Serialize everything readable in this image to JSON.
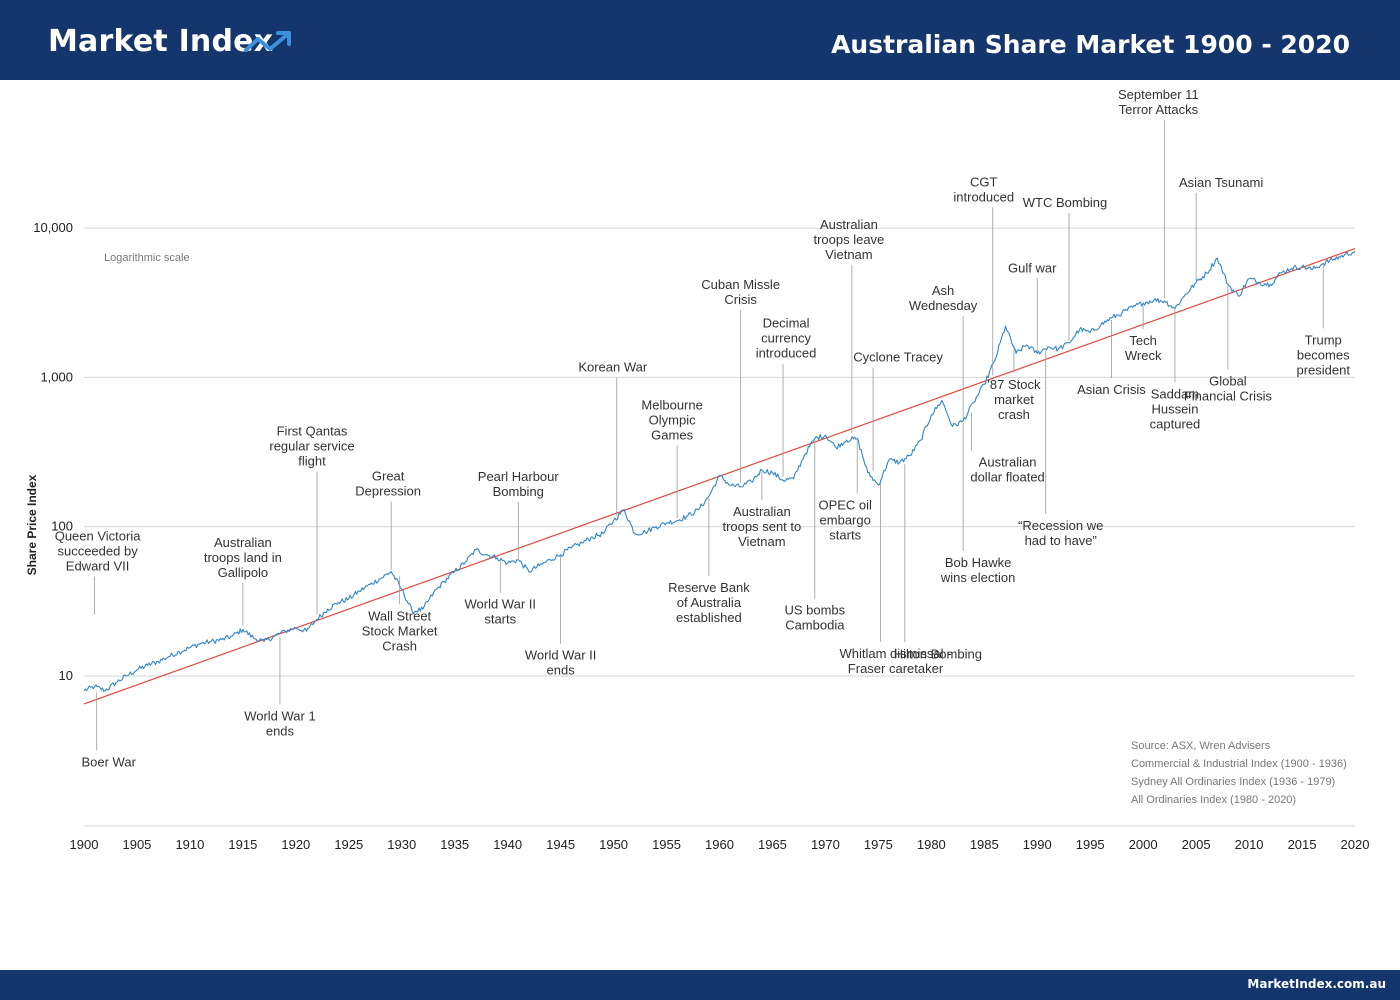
{
  "header": {
    "logo_text": "Market Index",
    "logo_icon": "trend-up-icon",
    "title": "Australian Share Market 1900 - 2020"
  },
  "footer": {
    "url": "MarketIndex.com.au"
  },
  "colors": {
    "brand": "#15356d",
    "accent": "#3b8fdd",
    "series": "#2f86c9",
    "trend": "#e0473a"
  },
  "chart_data": {
    "type": "line",
    "title": "",
    "xlabel": "",
    "ylabel": "Share Price Index",
    "yscale": "log",
    "scale_note": "Logarithmic scale",
    "xlim": [
      1900,
      2020
    ],
    "ylim": [
      2.5,
      15000
    ],
    "x_ticks": [
      1900,
      1905,
      1910,
      1915,
      1920,
      1925,
      1930,
      1935,
      1940,
      1945,
      1950,
      1955,
      1960,
      1965,
      1970,
      1975,
      1980,
      1985,
      1990,
      1995,
      2000,
      2005,
      2010,
      2015,
      2020
    ],
    "x_tick_labels": [
      "1900",
      "1905",
      "1910",
      "1915",
      "1920",
      "1925",
      "1930",
      "1935",
      "1940",
      "1945",
      "1950",
      "1955",
      "1960",
      "1965",
      "1970",
      "1975",
      "1980",
      "1985",
      "1990",
      "1995",
      "2000",
      "2005",
      "2010",
      "2015",
      "2020"
    ],
    "y_ticks": [
      10,
      100,
      1000,
      10000
    ],
    "y_tick_labels": [
      "10",
      "100",
      "1,000",
      "10,000"
    ],
    "grid": true,
    "series": [
      {
        "values": [
          [
            1900,
            8.0
          ],
          [
            1901,
            8.5
          ],
          [
            1902,
            8.0
          ],
          [
            1903,
            9.0
          ],
          [
            1904,
            10.0
          ],
          [
            1905,
            11.0
          ],
          [
            1906,
            11.8
          ],
          [
            1907,
            12.5
          ],
          [
            1908,
            13.5
          ],
          [
            1909,
            14.5
          ],
          [
            1910,
            15.5
          ],
          [
            1911,
            16.5
          ],
          [
            1912,
            17.0
          ],
          [
            1913,
            17.5
          ],
          [
            1914,
            18.5
          ],
          [
            1915,
            20.5
          ],
          [
            1916,
            18.0
          ],
          [
            1917,
            17.0
          ],
          [
            1918,
            18.5
          ],
          [
            1919,
            20.0
          ],
          [
            1920,
            21.0
          ],
          [
            1921,
            20.0
          ],
          [
            1922,
            24.0
          ],
          [
            1923,
            28.0
          ],
          [
            1924,
            31.0
          ],
          [
            1925,
            33.0
          ],
          [
            1926,
            37.0
          ],
          [
            1927,
            41.0
          ],
          [
            1928,
            45.0
          ],
          [
            1929,
            50.0
          ],
          [
            1930,
            38.0
          ],
          [
            1931,
            27.0
          ],
          [
            1932,
            28.0
          ],
          [
            1933,
            36.0
          ],
          [
            1934,
            43.0
          ],
          [
            1935,
            50.0
          ],
          [
            1936,
            58.0
          ],
          [
            1937,
            70.0
          ],
          [
            1938,
            65.0
          ],
          [
            1939,
            62.0
          ],
          [
            1940,
            57.0
          ],
          [
            1941,
            60.0
          ],
          [
            1942,
            50.0
          ],
          [
            1943,
            55.0
          ],
          [
            1944,
            60.0
          ],
          [
            1945,
            65.0
          ],
          [
            1946,
            72.0
          ],
          [
            1947,
            78.0
          ],
          [
            1948,
            85.0
          ],
          [
            1949,
            90.0
          ],
          [
            1950,
            110.0
          ],
          [
            1951,
            130.0
          ],
          [
            1952,
            90.0
          ],
          [
            1953,
            92.0
          ],
          [
            1954,
            100.0
          ],
          [
            1955,
            106.0
          ],
          [
            1956,
            110.0
          ],
          [
            1957,
            118.0
          ],
          [
            1958,
            130.0
          ],
          [
            1959,
            160.0
          ],
          [
            1960,
            220.0
          ],
          [
            1961,
            190.0
          ],
          [
            1962,
            185.0
          ],
          [
            1963,
            200.0
          ],
          [
            1964,
            240.0
          ],
          [
            1965,
            230.0
          ],
          [
            1966,
            205.0
          ],
          [
            1967,
            210.0
          ],
          [
            1968,
            300.0
          ],
          [
            1969,
            390.0
          ],
          [
            1970,
            410.0
          ],
          [
            1971,
            340.0
          ],
          [
            1972,
            380.0
          ],
          [
            1973,
            390.0
          ],
          [
            1974,
            230.0
          ],
          [
            1975,
            190.0
          ],
          [
            1976,
            280.0
          ],
          [
            1977,
            270.0
          ],
          [
            1978,
            300.0
          ],
          [
            1979,
            380.0
          ],
          [
            1980,
            560.0
          ],
          [
            1981,
            700.0
          ],
          [
            1982,
            470.0
          ],
          [
            1983,
            510.0
          ],
          [
            1984,
            680.0
          ],
          [
            1985,
            900.0
          ],
          [
            1986,
            1300.0
          ],
          [
            1987,
            2200.0
          ],
          [
            1988,
            1450.0
          ],
          [
            1989,
            1650.0
          ],
          [
            1990,
            1450.0
          ],
          [
            1991,
            1600.0
          ],
          [
            1992,
            1550.0
          ],
          [
            1993,
            1700.0
          ],
          [
            1994,
            2100.0
          ],
          [
            1995,
            2000.0
          ],
          [
            1996,
            2250.0
          ],
          [
            1997,
            2500.0
          ],
          [
            1998,
            2700.0
          ],
          [
            1999,
            2950.0
          ],
          [
            2000,
            3150.0
          ],
          [
            2001,
            3300.0
          ],
          [
            2002,
            3250.0
          ],
          [
            2003,
            2900.0
          ],
          [
            2004,
            3600.0
          ],
          [
            2005,
            4300.0
          ],
          [
            2006,
            5000.0
          ],
          [
            2007,
            6300.0
          ],
          [
            2008,
            4200.0
          ],
          [
            2009,
            3500.0
          ],
          [
            2010,
            4600.0
          ],
          [
            2011,
            4300.0
          ],
          [
            2012,
            4200.0
          ],
          [
            2013,
            5000.0
          ],
          [
            2014,
            5400.0
          ],
          [
            2015,
            5500.0
          ],
          [
            2016,
            5300.0
          ],
          [
            2017,
            5800.0
          ],
          [
            2018,
            6200.0
          ],
          [
            2019,
            6600.0
          ],
          [
            2020,
            7000.0
          ]
        ]
      },
      {
        "values": [
          [
            1900,
            6.5
          ],
          [
            2020,
            7300.0
          ]
        ]
      }
    ],
    "annotations": [
      {
        "lines": [
          "Queen Victoria",
          "succeeded by",
          "Edward VII"
        ],
        "x": 1901,
        "y": 25,
        "side": "above"
      },
      {
        "lines": [
          "Boer War"
        ],
        "x": 1901.2,
        "y": 8.0,
        "side": "below"
      },
      {
        "lines": [
          "Australian",
          "troops land in",
          "Gallipolo"
        ],
        "x": 1915,
        "y": 21,
        "side": "above"
      },
      {
        "lines": [
          "World War 1",
          "ends"
        ],
        "x": 1918.5,
        "y": 19,
        "side": "below"
      },
      {
        "lines": [
          "First Qantas",
          "regular service",
          "flight"
        ],
        "x": 1922,
        "y": 25,
        "side": "above"
      },
      {
        "lines": [
          "Great",
          "Depression"
        ],
        "x": 1929,
        "y": 50,
        "side": "above"
      },
      {
        "lines": [
          "Wall Street",
          "Stock Market",
          "Crash"
        ],
        "x": 1929.8,
        "y": 48,
        "side": "below"
      },
      {
        "lines": [
          "Pearl Harbour",
          "Bombing"
        ],
        "x": 1941,
        "y": 58,
        "side": "above"
      },
      {
        "lines": [
          "World War II",
          "starts"
        ],
        "x": 1939.3,
        "y": 62,
        "side": "below"
      },
      {
        "lines": [
          "World War II",
          "ends"
        ],
        "x": 1945,
        "y": 66,
        "side": "below"
      },
      {
        "lines": [
          "Korean War"
        ],
        "x": 1950.3,
        "y": 115,
        "side": "above"
      },
      {
        "lines": [
          "Melbourne",
          "Olympic",
          "Games"
        ],
        "x": 1956,
        "y": 110,
        "side": "above"
      },
      {
        "lines": [
          "Reserve Bank",
          "of Australia",
          "established"
        ],
        "x": 1959,
        "y": 160,
        "side": "below"
      },
      {
        "lines": [
          "Cuban Missle",
          "Crisis"
        ],
        "x": 1962,
        "y": 190,
        "side": "above"
      },
      {
        "lines": [
          "Decimal",
          "currency",
          "introduced"
        ],
        "x": 1966,
        "y": 210,
        "side": "above"
      },
      {
        "lines": [
          "Australian",
          "troops sent to",
          "Vietnam"
        ],
        "x": 1964,
        "y": 240,
        "side": "below"
      },
      {
        "lines": [
          "US bombs",
          "Cambodia"
        ],
        "x": 1969,
        "y": 390,
        "side": "below"
      },
      {
        "lines": [
          "Australian",
          "troops leave",
          "Vietnam"
        ],
        "x": 1972.5,
        "y": 410,
        "side": "above"
      },
      {
        "lines": [
          "OPEC oil",
          "embargo",
          "starts"
        ],
        "x": 1973,
        "y": 390,
        "side": "below"
      },
      {
        "lines": [
          "Cyclone Tracey"
        ],
        "x": 1974.5,
        "y": 230,
        "side": "above"
      },
      {
        "lines": [
          "Whitlam dismissal -",
          "Fraser caretaker"
        ],
        "x": 1975.2,
        "y": 200,
        "side": "below"
      },
      {
        "lines": [
          "Hilton Bombing"
        ],
        "x": 1977.5,
        "y": 270,
        "side": "below"
      },
      {
        "lines": [
          "Ash",
          "Wednesday"
        ],
        "x": 1983,
        "y": 510,
        "side": "above"
      },
      {
        "lines": [
          "Bob Hawke",
          "wins election"
        ],
        "x": 1983,
        "y": 510,
        "side": "below"
      },
      {
        "lines": [
          "Australian",
          "dollar floated"
        ],
        "x": 1983.8,
        "y": 600,
        "side": "below"
      },
      {
        "lines": [
          "CGT",
          "introduced"
        ],
        "x": 1985.8,
        "y": 1000,
        "side": "above"
      },
      {
        "lines": [
          "'87 Stock",
          "market",
          "crash"
        ],
        "x": 1987.8,
        "y": 1700,
        "side": "below"
      },
      {
        "lines": [
          "Gulf war"
        ],
        "x": 1990,
        "y": 1450,
        "side": "above"
      },
      {
        "lines": [
          "“Recession we",
          "had to have”"
        ],
        "x": 1990.8,
        "y": 1550,
        "side": "below"
      },
      {
        "lines": [
          "WTC Bombing"
        ],
        "x": 1993,
        "y": 1700,
        "side": "above"
      },
      {
        "lines": [
          "Asian Crisis"
        ],
        "x": 1997,
        "y": 2500,
        "side": "below"
      },
      {
        "lines": [
          "Tech",
          "Wreck"
        ],
        "x": 2000,
        "y": 3100,
        "side": "below"
      },
      {
        "lines": [
          "September 11",
          "Terror Attacks"
        ],
        "x": 2002,
        "y": 3300,
        "side": "above"
      },
      {
        "lines": [
          "Saddam",
          "Hussein",
          "captured"
        ],
        "x": 2003,
        "y": 2950,
        "side": "below"
      },
      {
        "lines": [
          "Asian Tsunami"
        ],
        "x": 2005,
        "y": 4300,
        "side": "above"
      },
      {
        "lines": [
          "Global",
          "Financial Crisis"
        ],
        "x": 2008,
        "y": 4200,
        "side": "below"
      },
      {
        "lines": [
          "Trump",
          "becomes",
          "president"
        ],
        "x": 2017,
        "y": 5800,
        "side": "below"
      }
    ],
    "source_lines": [
      "Source: ASX, Wren Advisers",
      "Commercial & Industrial Index (1900 - 1936)",
      "Sydney All Ordinaries Index (1936 - 1979)",
      "All Ordinaries Index (1980 - 2020)"
    ]
  }
}
